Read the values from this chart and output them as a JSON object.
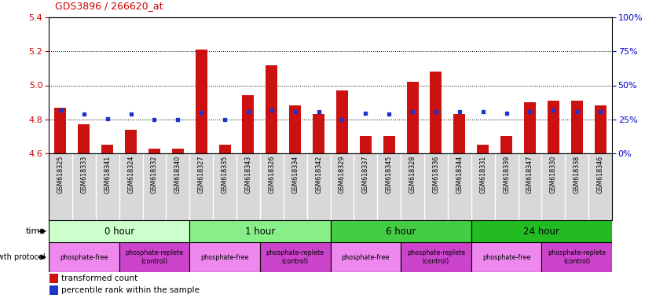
{
  "title": "GDS3896 / 266620_at",
  "samples": [
    "GSM618325",
    "GSM618333",
    "GSM618341",
    "GSM618324",
    "GSM618332",
    "GSM618340",
    "GSM618327",
    "GSM618335",
    "GSM618343",
    "GSM618326",
    "GSM618334",
    "GSM618342",
    "GSM618329",
    "GSM618337",
    "GSM618345",
    "GSM618328",
    "GSM618336",
    "GSM618344",
    "GSM618331",
    "GSM618339",
    "GSM618347",
    "GSM618330",
    "GSM618338",
    "GSM618346"
  ],
  "red_values": [
    4.87,
    4.77,
    4.65,
    4.74,
    4.63,
    4.63,
    5.21,
    4.65,
    4.94,
    5.12,
    4.88,
    4.83,
    4.97,
    4.7,
    4.7,
    5.02,
    5.08,
    4.83,
    4.65,
    4.7,
    4.9,
    4.91,
    4.91,
    4.88
  ],
  "blue_values": [
    4.855,
    4.832,
    4.802,
    4.832,
    4.8,
    4.8,
    4.841,
    4.8,
    4.844,
    4.855,
    4.844,
    4.843,
    4.8,
    4.836,
    4.832,
    4.844,
    4.844,
    4.844,
    4.844,
    4.836,
    4.844,
    4.855,
    4.844,
    4.844
  ],
  "ylim_min": 4.6,
  "ylim_max": 5.4,
  "y2lim_min": 0,
  "y2lim_max": 100,
  "yticks": [
    4.6,
    4.8,
    5.0,
    5.2,
    5.4
  ],
  "y2ticks": [
    0,
    25,
    50,
    75,
    100
  ],
  "y2ticklabels": [
    "0%",
    "25%",
    "50%",
    "75%",
    "100%"
  ],
  "hlines": [
    4.8,
    5.0,
    5.2
  ],
  "time_groups": [
    {
      "label": "0 hour",
      "start": 0,
      "end": 6,
      "color": "#ccffcc"
    },
    {
      "label": "1 hour",
      "start": 6,
      "end": 12,
      "color": "#88ee88"
    },
    {
      "label": "6 hour",
      "start": 12,
      "end": 18,
      "color": "#44cc44"
    },
    {
      "label": "24 hour",
      "start": 18,
      "end": 24,
      "color": "#22bb22"
    }
  ],
  "protocol_groups": [
    {
      "label": "phosphate-free",
      "start": 0,
      "end": 3,
      "color": "#ee88ee"
    },
    {
      "label": "phosphate-replete\n(control)",
      "start": 3,
      "end": 6,
      "color": "#cc44cc"
    },
    {
      "label": "phosphate-free",
      "start": 6,
      "end": 9,
      "color": "#ee88ee"
    },
    {
      "label": "phosphate-replete\n(control)",
      "start": 9,
      "end": 12,
      "color": "#cc44cc"
    },
    {
      "label": "phosphate-free",
      "start": 12,
      "end": 15,
      "color": "#ee88ee"
    },
    {
      "label": "phosphate-replete\n(control)",
      "start": 15,
      "end": 18,
      "color": "#cc44cc"
    },
    {
      "label": "phosphate-free",
      "start": 18,
      "end": 21,
      "color": "#ee88ee"
    },
    {
      "label": "phosphate-replete\n(control)",
      "start": 21,
      "end": 24,
      "color": "#cc44cc"
    }
  ],
  "bar_color": "#cc1111",
  "dot_color": "#2233cc",
  "title_color": "#cc0000",
  "left_axis_color": "#cc0000",
  "right_axis_color": "#0000cc",
  "bar_bottom": 4.6,
  "bar_width": 0.5
}
